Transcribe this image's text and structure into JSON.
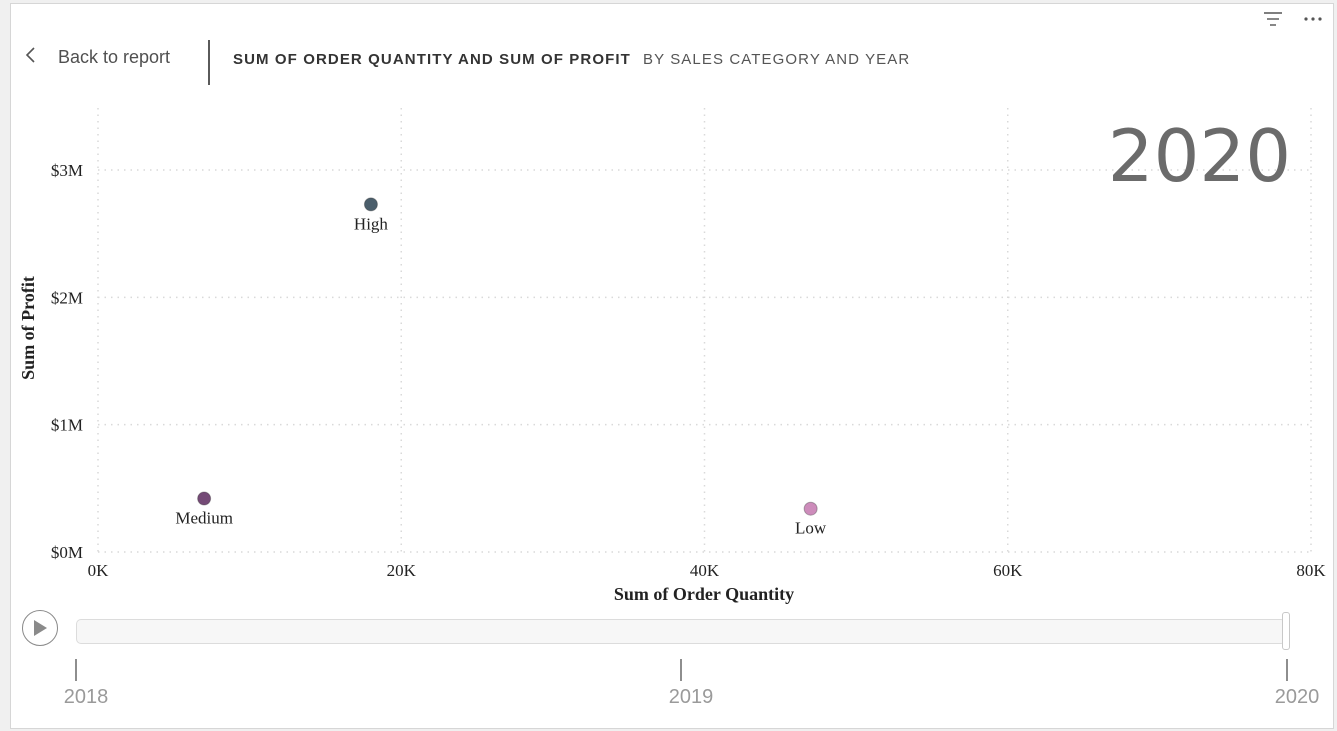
{
  "header": {
    "back_label": "Back to report",
    "title_main": "SUM OF ORDER QUANTITY AND SUM OF PROFIT",
    "title_sub": "BY SALES CATEGORY AND YEAR"
  },
  "play_axis": {
    "current_year": "2020",
    "years": [
      "2018",
      "2019",
      "2020"
    ]
  },
  "chart_data": {
    "type": "scatter",
    "xlabel": "Sum of Order Quantity",
    "ylabel": "Sum of Profit",
    "x_ticks": [
      "0K",
      "20K",
      "40K",
      "60K",
      "80K"
    ],
    "y_ticks": [
      "$0M",
      "$1M",
      "$2M",
      "$3M"
    ],
    "xlim": [
      0,
      80000
    ],
    "ylim": [
      0,
      3000000
    ],
    "grid": true,
    "points": [
      {
        "label": "High",
        "x": 18000,
        "y": 2730000,
        "color": "#4b5e6b"
      },
      {
        "label": "Medium",
        "x": 7000,
        "y": 420000,
        "color": "#744a76"
      },
      {
        "label": "Low",
        "x": 47000,
        "y": 340000,
        "color": "#cd8cbb"
      }
    ]
  }
}
